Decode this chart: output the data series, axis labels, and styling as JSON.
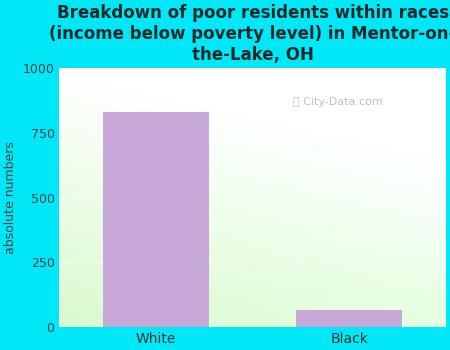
{
  "categories": [
    "White",
    "Black"
  ],
  "values": [
    830,
    65
  ],
  "bar_color": "#c8a8d8",
  "title": "Breakdown of poor residents within races\n(income below poverty level) in Mentor-on-\nthe-Lake, OH",
  "ylabel": "absolute numbers",
  "ylim": [
    0,
    1000
  ],
  "yticks": [
    0,
    250,
    500,
    750,
    1000
  ],
  "background_color": "#00e8f8",
  "title_fontsize": 12,
  "title_color": "#1a2a2a",
  "axis_label_fontsize": 9,
  "tick_fontsize": 9,
  "watermark": "City-Data.com",
  "bar_width": 0.55
}
